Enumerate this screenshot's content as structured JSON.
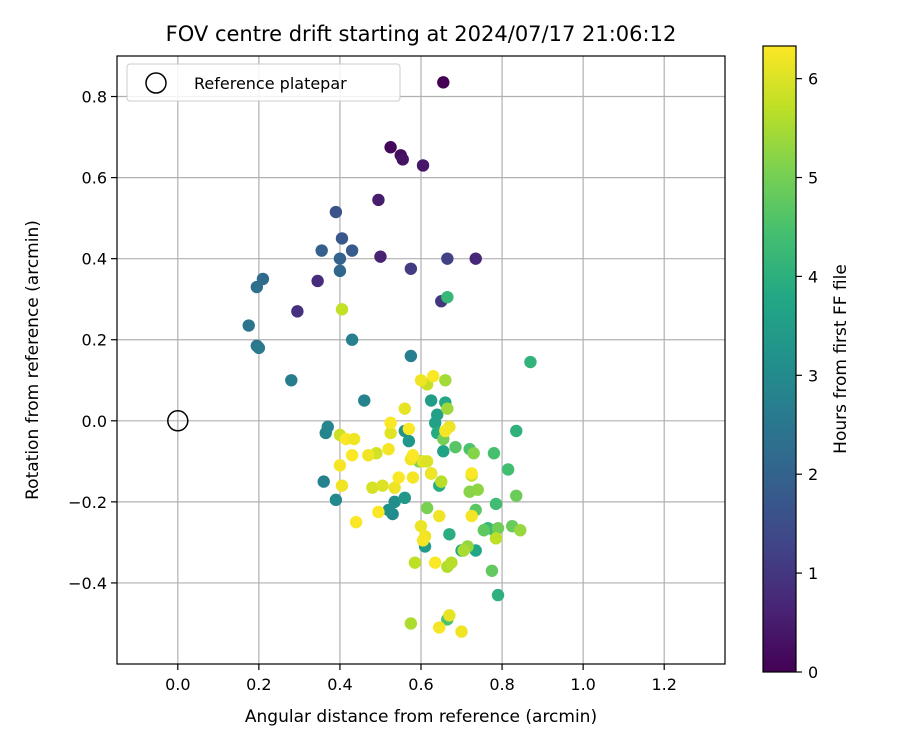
{
  "chart_data": {
    "type": "scatter",
    "title": "FOV centre drift starting at 2024/07/17 21:06:12",
    "xlabel": "Angular distance from reference (arcmin)",
    "ylabel": "Rotation from reference (arcmin)",
    "xlim": [
      -0.15,
      1.35
    ],
    "ylim": [
      -0.6,
      0.9
    ],
    "xticks": [
      "0.0",
      "0.2",
      "0.4",
      "0.6",
      "0.8",
      "1.0",
      "1.2"
    ],
    "yticks": [
      "−0.4",
      "−0.2",
      "0.0",
      "0.2",
      "0.4",
      "0.6",
      "0.8"
    ],
    "grid": true,
    "legend": {
      "placement": "top-left",
      "entries": [
        "Reference platepar"
      ]
    },
    "reference_point": {
      "x": 0.0,
      "y": 0.0,
      "marker": "open-circle"
    },
    "colorbar": {
      "label": "Hours from first FF file",
      "range": [
        0,
        6.33
      ],
      "ticks": [
        "0",
        "1",
        "2",
        "3",
        "4",
        "5",
        "6"
      ],
      "colormap": "viridis"
    },
    "series": [
      {
        "points": [
          [
            0.655,
            0.835,
            0.0
          ],
          [
            0.525,
            0.675,
            0.1
          ],
          [
            0.55,
            0.655,
            0.2
          ],
          [
            0.555,
            0.645,
            0.3
          ],
          [
            0.605,
            0.63,
            0.4
          ],
          [
            0.495,
            0.545,
            0.5
          ],
          [
            0.5,
            0.405,
            0.6
          ],
          [
            0.735,
            0.4,
            0.7
          ],
          [
            0.345,
            0.345,
            0.8
          ],
          [
            0.295,
            0.27,
            0.9
          ],
          [
            0.65,
            0.295,
            1.0
          ],
          [
            0.575,
            0.375,
            1.1
          ],
          [
            0.665,
            0.4,
            1.2
          ],
          [
            0.39,
            0.515,
            1.6
          ],
          [
            0.405,
            0.45,
            1.7
          ],
          [
            0.43,
            0.42,
            1.8
          ],
          [
            0.355,
            0.42,
            1.9
          ],
          [
            0.4,
            0.4,
            2.0
          ],
          [
            0.4,
            0.37,
            2.1
          ],
          [
            0.21,
            0.35,
            2.2
          ],
          [
            0.195,
            0.33,
            2.3
          ],
          [
            0.175,
            0.235,
            2.4
          ],
          [
            0.195,
            0.185,
            2.5
          ],
          [
            0.2,
            0.18,
            2.55
          ],
          [
            0.28,
            0.1,
            2.6
          ],
          [
            0.575,
            0.16,
            2.65
          ],
          [
            0.43,
            0.2,
            2.7
          ],
          [
            0.36,
            -0.15,
            2.75
          ],
          [
            0.46,
            0.05,
            2.8
          ],
          [
            0.365,
            -0.03,
            2.85
          ],
          [
            0.37,
            -0.015,
            2.9
          ],
          [
            0.39,
            -0.195,
            2.95
          ],
          [
            0.53,
            -0.23,
            3.0
          ],
          [
            0.535,
            -0.2,
            3.1
          ],
          [
            0.52,
            -0.22,
            3.15
          ],
          [
            0.56,
            -0.025,
            3.2
          ],
          [
            0.57,
            -0.05,
            3.3
          ],
          [
            0.56,
            -0.19,
            3.35
          ],
          [
            0.61,
            -0.31,
            3.4
          ],
          [
            0.625,
            0.05,
            3.5
          ],
          [
            0.64,
            0.015,
            3.55
          ],
          [
            0.635,
            -0.005,
            3.6
          ],
          [
            0.655,
            -0.075,
            3.65
          ],
          [
            0.7,
            -0.32,
            3.7
          ],
          [
            0.735,
            -0.32,
            3.75
          ],
          [
            0.66,
            0.045,
            3.8
          ],
          [
            0.64,
            -0.03,
            3.85
          ],
          [
            0.645,
            -0.16,
            3.9
          ],
          [
            0.67,
            -0.28,
            3.95
          ],
          [
            0.79,
            -0.43,
            4.0
          ],
          [
            0.835,
            -0.025,
            4.05
          ],
          [
            0.87,
            0.145,
            4.1
          ],
          [
            0.665,
            0.305,
            4.2
          ],
          [
            0.765,
            -0.265,
            4.25
          ],
          [
            0.78,
            -0.27,
            4.3
          ],
          [
            0.785,
            -0.205,
            4.35
          ],
          [
            0.815,
            -0.12,
            4.4
          ],
          [
            0.78,
            -0.08,
            4.45
          ],
          [
            0.72,
            -0.07,
            4.5
          ],
          [
            0.665,
            -0.49,
            4.55
          ],
          [
            0.625,
            -0.13,
            4.6
          ],
          [
            0.685,
            -0.065,
            4.65
          ],
          [
            0.735,
            -0.22,
            4.7
          ],
          [
            0.755,
            -0.27,
            4.75
          ],
          [
            0.775,
            -0.37,
            4.8
          ],
          [
            0.825,
            -0.26,
            4.85
          ],
          [
            0.835,
            -0.185,
            4.9
          ],
          [
            0.79,
            -0.265,
            4.95
          ],
          [
            0.655,
            -0.045,
            5.0
          ],
          [
            0.615,
            -0.215,
            5.05
          ],
          [
            0.595,
            -0.1,
            5.1
          ],
          [
            0.73,
            -0.08,
            5.15
          ],
          [
            0.72,
            -0.175,
            5.2
          ],
          [
            0.74,
            -0.17,
            5.25
          ],
          [
            0.715,
            -0.31,
            5.3
          ],
          [
            0.845,
            -0.27,
            5.35
          ],
          [
            0.665,
            0.03,
            5.4
          ],
          [
            0.66,
            0.1,
            5.45
          ],
          [
            0.705,
            -0.32,
            5.5
          ],
          [
            0.575,
            -0.5,
            5.55
          ],
          [
            0.665,
            -0.36,
            5.6
          ],
          [
            0.675,
            -0.35,
            5.65
          ],
          [
            0.785,
            -0.29,
            5.7
          ],
          [
            0.725,
            -0.135,
            5.75
          ],
          [
            0.615,
            0.09,
            5.8
          ],
          [
            0.4,
            -0.035,
            5.85
          ],
          [
            0.49,
            -0.08,
            5.9
          ],
          [
            0.48,
            -0.165,
            5.95
          ],
          [
            0.505,
            -0.16,
            6.0
          ],
          [
            0.525,
            -0.03,
            6.05
          ],
          [
            0.56,
            0.03,
            6.1
          ],
          [
            0.405,
            0.275,
            5.75
          ],
          [
            0.585,
            -0.35,
            5.7
          ],
          [
            0.65,
            -0.15,
            5.65
          ],
          [
            0.7,
            -0.52,
            6.2
          ],
          [
            0.645,
            -0.51,
            6.25
          ],
          [
            0.67,
            -0.48,
            6.1
          ],
          [
            0.6,
            -0.26,
            6.15
          ],
          [
            0.61,
            -0.285,
            6.2
          ],
          [
            0.605,
            -0.295,
            6.25
          ],
          [
            0.635,
            -0.35,
            6.3
          ],
          [
            0.645,
            -0.235,
            6.2
          ],
          [
            0.535,
            -0.165,
            6.15
          ],
          [
            0.545,
            -0.14,
            6.3
          ],
          [
            0.58,
            -0.14,
            6.25
          ],
          [
            0.575,
            -0.095,
            6.2
          ],
          [
            0.58,
            -0.085,
            6.3
          ],
          [
            0.605,
            -0.1,
            6.1
          ],
          [
            0.615,
            -0.1,
            6.0
          ],
          [
            0.625,
            -0.13,
            6.2
          ],
          [
            0.63,
            0.11,
            6.3
          ],
          [
            0.525,
            -0.005,
            6.3
          ],
          [
            0.52,
            -0.07,
            6.25
          ],
          [
            0.47,
            -0.085,
            6.2
          ],
          [
            0.495,
            -0.225,
            6.3
          ],
          [
            0.44,
            -0.25,
            6.3
          ],
          [
            0.405,
            -0.16,
            6.2
          ],
          [
            0.4,
            -0.11,
            6.25
          ],
          [
            0.415,
            -0.045,
            6.3
          ],
          [
            0.435,
            -0.045,
            6.2
          ],
          [
            0.43,
            -0.085,
            6.3
          ],
          [
            0.725,
            -0.235,
            6.25
          ],
          [
            0.725,
            -0.13,
            6.3
          ],
          [
            0.67,
            -0.015,
            6.15
          ],
          [
            0.66,
            -0.025,
            6.25
          ],
          [
            0.6,
            0.1,
            6.2
          ],
          [
            0.57,
            -0.02,
            6.3
          ]
        ]
      }
    ]
  }
}
